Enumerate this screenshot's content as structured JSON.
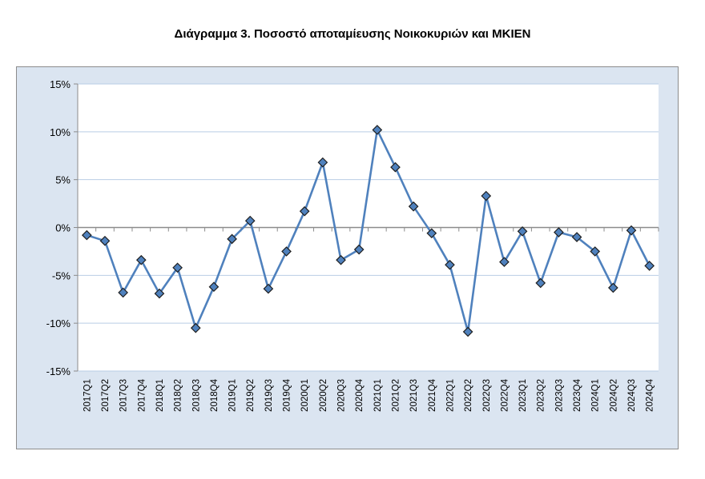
{
  "chart_data": {
    "type": "line",
    "title": "Διάγραμμα 3. Ποσοστό αποταμίευσης Νοικοκυριών και ΜΚΙΕΝ",
    "xlabel": "",
    "ylabel": "",
    "ylim": [
      -15,
      15
    ],
    "yticks": [
      "15%",
      "10%",
      "5%",
      "0%",
      "-5%",
      "-10%",
      "-15%"
    ],
    "ytick_values": [
      15,
      10,
      5,
      0,
      -5,
      -10,
      -15
    ],
    "grid": true,
    "legend": "none",
    "line_color": "#4f81bd",
    "marker_color": "#4f81bd",
    "categories": [
      "2017Q1",
      "2017Q2",
      "2017Q3",
      "2017Q4",
      "2018Q1",
      "2018Q2",
      "2018Q3",
      "2018Q4",
      "2019Q1",
      "2019Q2",
      "2019Q3",
      "2019Q4",
      "2020Q1",
      "2020Q2",
      "2020Q3",
      "2020Q4",
      "2021Q1",
      "2021Q2",
      "2021Q3",
      "2021Q4",
      "2022Q1",
      "2022Q2",
      "2022Q3",
      "2022Q4",
      "2023Q1",
      "2023Q2",
      "2023Q3",
      "2023Q4",
      "2024Q1",
      "2024Q2",
      "2024Q3",
      "2024Q4"
    ],
    "series": [
      {
        "values": [
          -0.8,
          -1.4,
          -6.8,
          -3.4,
          -6.9,
          -4.2,
          -10.5,
          -6.2,
          -1.2,
          0.7,
          -6.4,
          -2.5,
          1.7,
          6.8,
          -3.4,
          -2.3,
          10.2,
          6.3,
          2.2,
          -0.6,
          -3.9,
          -10.9,
          3.3,
          -3.6,
          -0.4,
          -5.8,
          -0.5,
          -1.0,
          -2.5,
          -6.3,
          -0.3,
          -4.0
        ]
      }
    ]
  }
}
